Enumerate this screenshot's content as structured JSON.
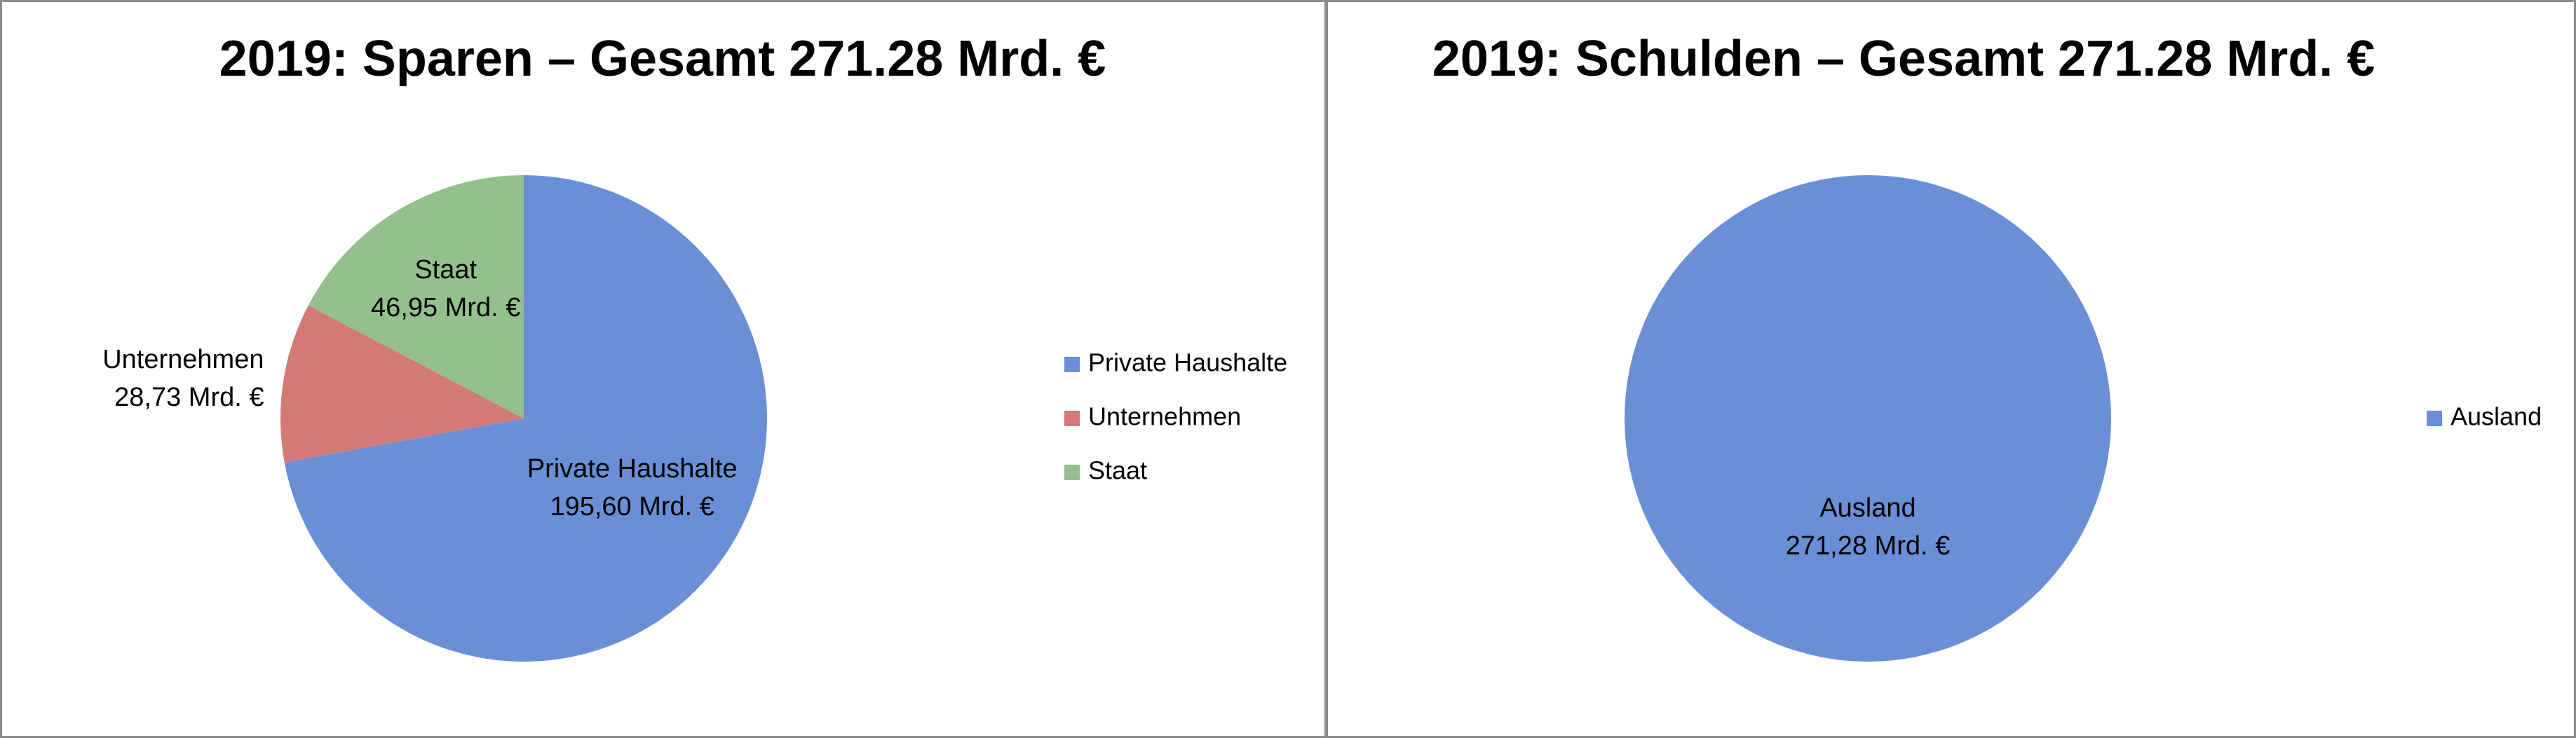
{
  "chart_data": [
    {
      "type": "pie",
      "title": "2019: Sparen – Gesamt 271.28 Mrd. €",
      "categories": [
        "Private Haushalte",
        "Unternehmen",
        "Staat"
      ],
      "values": [
        195.6,
        28.73,
        46.95
      ],
      "value_labels": [
        "195,60 Mrd. €",
        "28,73 Mrd. €",
        "46,95 Mrd. €"
      ],
      "colors": [
        "#6a8fd6",
        "#d47a76",
        "#93c08c"
      ],
      "legend": "right"
    },
    {
      "type": "pie",
      "title": "2019: Schulden – Gesamt 271.28 Mrd. €",
      "categories": [
        "Ausland"
      ],
      "values": [
        271.28
      ],
      "value_labels": [
        "271,28 Mrd. €"
      ],
      "colors": [
        "#6a8fd6"
      ],
      "legend": "right"
    }
  ]
}
